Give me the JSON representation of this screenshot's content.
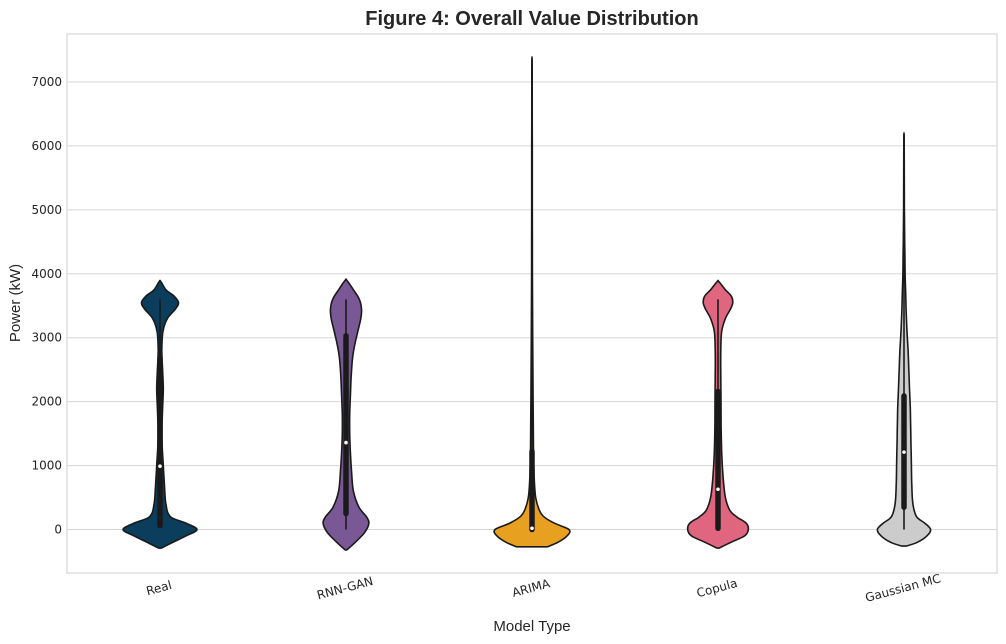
{
  "chart_data": {
    "type": "violin",
    "title": "Figure 4: Overall Value Distribution",
    "xlabel": "Model Type",
    "ylabel": "Power (kW)",
    "categories": [
      "Real",
      "RNN-GAN",
      "ARIMA",
      "Copula",
      "Gaussian MC"
    ],
    "ylim": [
      -680,
      7750
    ],
    "yticks": [
      0,
      1000,
      2000,
      3000,
      4000,
      5000,
      6000,
      7000
    ],
    "grid": true,
    "legend": "none",
    "series": [
      {
        "color": "#0b3d5c",
        "min": 60,
        "q1": 60,
        "median": 990,
        "q3": 2680,
        "max": 3600,
        "density": [
          [
            -290,
            0.04
          ],
          [
            -200,
            0.35
          ],
          [
            -100,
            0.7
          ],
          [
            0,
            1.0
          ],
          [
            100,
            0.7
          ],
          [
            200,
            0.28
          ],
          [
            400,
            0.16
          ],
          [
            700,
            0.12
          ],
          [
            1000,
            0.09
          ],
          [
            1300,
            0.06
          ],
          [
            1600,
            0.055
          ],
          [
            1900,
            0.07
          ],
          [
            2200,
            0.09
          ],
          [
            2500,
            0.07
          ],
          [
            2800,
            0.05
          ],
          [
            3100,
            0.08
          ],
          [
            3300,
            0.2
          ],
          [
            3450,
            0.42
          ],
          [
            3550,
            0.5
          ],
          [
            3650,
            0.38
          ],
          [
            3750,
            0.16
          ],
          [
            3880,
            0.02
          ]
        ]
      },
      {
        "color": "#7a5895",
        "min": 0,
        "q1": 250,
        "median": 1360,
        "q3": 3030,
        "max": 3600,
        "density": [
          [
            -320,
            0.02
          ],
          [
            -200,
            0.25
          ],
          [
            -50,
            0.5
          ],
          [
            100,
            0.62
          ],
          [
            200,
            0.55
          ],
          [
            350,
            0.35
          ],
          [
            600,
            0.2
          ],
          [
            900,
            0.15
          ],
          [
            1200,
            0.12
          ],
          [
            1500,
            0.1
          ],
          [
            1800,
            0.1
          ],
          [
            2100,
            0.12
          ],
          [
            2400,
            0.14
          ],
          [
            2700,
            0.18
          ],
          [
            2900,
            0.24
          ],
          [
            3100,
            0.32
          ],
          [
            3300,
            0.4
          ],
          [
            3450,
            0.42
          ],
          [
            3600,
            0.36
          ],
          [
            3750,
            0.2
          ],
          [
            3900,
            0.02
          ]
        ]
      },
      {
        "color": "#e8a020",
        "min": 0,
        "q1": 0,
        "median": 20,
        "q3": 1220,
        "max": 7350,
        "density": [
          [
            -270,
            0.42
          ],
          [
            -200,
            0.7
          ],
          [
            -100,
            0.95
          ],
          [
            0,
            1.0
          ],
          [
            100,
            0.6
          ],
          [
            200,
            0.32
          ],
          [
            300,
            0.2
          ],
          [
            500,
            0.1
          ],
          [
            800,
            0.06
          ],
          [
            1200,
            0.04
          ],
          [
            2000,
            0.03
          ],
          [
            3000,
            0.018
          ],
          [
            4000,
            0.012
          ],
          [
            5000,
            0.009
          ],
          [
            6000,
            0.007
          ],
          [
            7000,
            0.005
          ],
          [
            7350,
            0.003
          ]
        ]
      },
      {
        "color": "#e06680",
        "min": 20,
        "q1": 20,
        "median": 630,
        "q3": 2160,
        "max": 3600,
        "density": [
          [
            -290,
            0.03
          ],
          [
            -200,
            0.35
          ],
          [
            -100,
            0.72
          ],
          [
            0,
            0.82
          ],
          [
            100,
            0.76
          ],
          [
            200,
            0.5
          ],
          [
            300,
            0.32
          ],
          [
            500,
            0.2
          ],
          [
            800,
            0.14
          ],
          [
            1200,
            0.1
          ],
          [
            1600,
            0.085
          ],
          [
            2000,
            0.08
          ],
          [
            2400,
            0.075
          ],
          [
            2800,
            0.075
          ],
          [
            3100,
            0.1
          ],
          [
            3300,
            0.2
          ],
          [
            3450,
            0.34
          ],
          [
            3550,
            0.4
          ],
          [
            3650,
            0.36
          ],
          [
            3750,
            0.2
          ],
          [
            3880,
            0.02
          ]
        ]
      },
      {
        "color": "#cccccc",
        "min": 0,
        "q1": 350,
        "median": 1210,
        "q3": 2090,
        "max": 6180,
        "density": [
          [
            -260,
            0.06
          ],
          [
            -200,
            0.36
          ],
          [
            -100,
            0.62
          ],
          [
            0,
            0.72
          ],
          [
            100,
            0.56
          ],
          [
            200,
            0.34
          ],
          [
            400,
            0.24
          ],
          [
            700,
            0.21
          ],
          [
            1000,
            0.2
          ],
          [
            1300,
            0.19
          ],
          [
            1600,
            0.18
          ],
          [
            1900,
            0.17
          ],
          [
            2200,
            0.15
          ],
          [
            2500,
            0.13
          ],
          [
            2800,
            0.11
          ],
          [
            3100,
            0.08
          ],
          [
            3400,
            0.06
          ],
          [
            3700,
            0.045
          ],
          [
            4000,
            0.03
          ],
          [
            4500,
            0.02
          ],
          [
            5000,
            0.012
          ],
          [
            5500,
            0.008
          ],
          [
            6000,
            0.005
          ],
          [
            6180,
            0.003
          ]
        ]
      }
    ]
  }
}
